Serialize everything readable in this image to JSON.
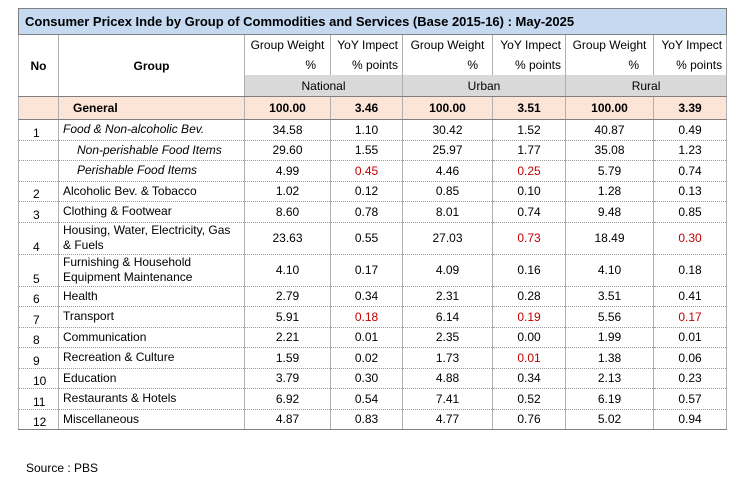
{
  "title": "Consumer Pricex Inde by Group of Commodities and Services  (Base 2015-16) : May-2025",
  "headers": {
    "no": "No",
    "group": "Group",
    "weight_line1": "Group Weight",
    "weight_line2": "%",
    "impact_line1": "YoY Impect",
    "impact_line2": "% points",
    "regions": [
      "National",
      "Urban",
      "Rural"
    ]
  },
  "general": {
    "label": "General",
    "values": [
      "100.00",
      "3.46",
      "100.00",
      "3.51",
      "100.00",
      "3.39"
    ]
  },
  "rows": [
    {
      "no": "1",
      "group": "Food & Non-alcoholic Bev.",
      "values": [
        "34.58",
        "1.10",
        "30.42",
        "1.52",
        "40.87",
        "0.49"
      ],
      "red": []
    },
    {
      "no": "",
      "group": "Non-perishable Food Items",
      "values": [
        "29.60",
        "1.55",
        "25.97",
        "1.77",
        "35.08",
        "1.23"
      ],
      "red": []
    },
    {
      "no": "",
      "group": "Perishable Food Items",
      "values": [
        "4.99",
        "0.45",
        "4.46",
        "0.25",
        "5.79",
        "0.74"
      ],
      "red": [
        1,
        3
      ]
    },
    {
      "no": "2",
      "group": "Alcoholic Bev. & Tobacco",
      "values": [
        "1.02",
        "0.12",
        "0.85",
        "0.10",
        "1.28",
        "0.13"
      ],
      "red": []
    },
    {
      "no": "3",
      "group": "Clothing & Footwear",
      "values": [
        "8.60",
        "0.78",
        "8.01",
        "0.74",
        "9.48",
        "0.85"
      ],
      "red": []
    },
    {
      "no": "4",
      "group": "Housing, Water, Electricity, Gas & Fuels",
      "values": [
        "23.63",
        "0.55",
        "27.03",
        "0.73",
        "18.49",
        "0.30"
      ],
      "red": [
        3,
        5
      ]
    },
    {
      "no": "5",
      "group": "Furnishing & Household Equipment Maintenance",
      "values": [
        "4.10",
        "0.17",
        "4.09",
        "0.16",
        "4.10",
        "0.18"
      ],
      "red": []
    },
    {
      "no": "6",
      "group": "Health",
      "values": [
        "2.79",
        "0.34",
        "2.31",
        "0.28",
        "3.51",
        "0.41"
      ],
      "red": []
    },
    {
      "no": "7",
      "group": "Transport",
      "values": [
        "5.91",
        "0.18",
        "6.14",
        "0.19",
        "5.56",
        "0.17"
      ],
      "red": [
        1,
        3,
        5
      ]
    },
    {
      "no": "8",
      "group": "Communication",
      "values": [
        "2.21",
        "0.01",
        "2.35",
        "0.00",
        "1.99",
        "0.01"
      ],
      "red": []
    },
    {
      "no": "9",
      "group": "Recreation & Culture",
      "values": [
        "1.59",
        "0.02",
        "1.73",
        "0.01",
        "1.38",
        "0.06"
      ],
      "red": [
        3
      ]
    },
    {
      "no": "10",
      "group": "Education",
      "values": [
        "3.79",
        "0.30",
        "4.88",
        "0.34",
        "2.13",
        "0.23"
      ],
      "red": []
    },
    {
      "no": "11",
      "group": "Restaurants & Hotels",
      "values": [
        "6.92",
        "0.54",
        "7.41",
        "0.52",
        "6.19",
        "0.57"
      ],
      "red": []
    },
    {
      "no": "12",
      "group": "Miscellaneous",
      "values": [
        "4.87",
        "0.83",
        "4.77",
        "0.76",
        "5.02",
        "0.94"
      ],
      "red": []
    }
  ],
  "source": "Source : PBS"
}
